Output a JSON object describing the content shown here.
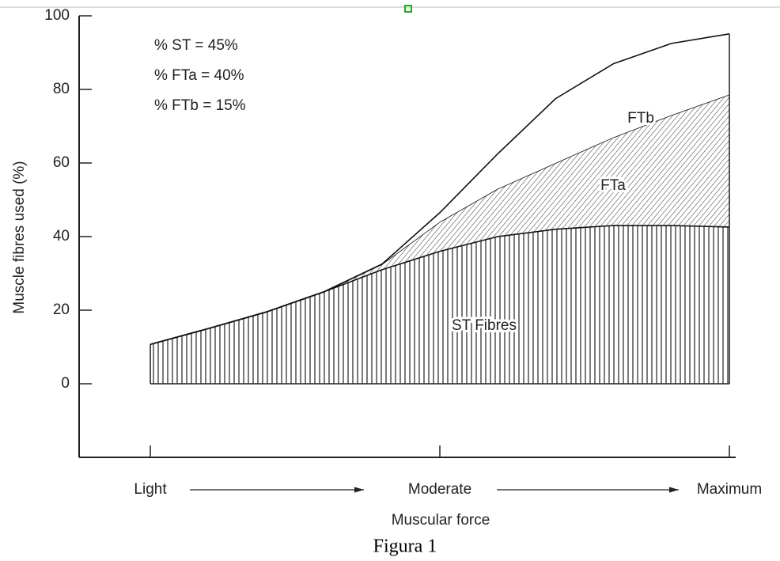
{
  "chart_data": {
    "type": "stacked_area",
    "caption": "Figura 1",
    "y_label": "Muscle fibres used (%)",
    "x_label": "Muscular force",
    "annotations": [
      "% ST = 45%",
      "% FTa = 40%",
      "% FTb = 15%"
    ],
    "x": [
      0,
      10,
      20,
      30,
      40,
      50,
      60,
      70,
      80,
      90,
      100
    ],
    "xlim": [
      -12.3,
      100
    ],
    "xticks": [
      {
        "value": 0,
        "label": "Light"
      },
      {
        "value": 50,
        "label": "Moderate"
      },
      {
        "value": 100,
        "label": "Maximum"
      }
    ],
    "ylim": [
      -20,
      100
    ],
    "yticks": [
      0,
      20,
      40,
      60,
      80,
      100
    ],
    "series": [
      {
        "name": "ST Fibres",
        "color": "#111111",
        "pattern": "vertical",
        "values": [
          10.7,
          15,
          19.5,
          25,
          31,
          36,
          40,
          42,
          43,
          43,
          42.6
        ]
      },
      {
        "name": "FTa",
        "color": "#111111",
        "pattern": "diagonal",
        "values": [
          0,
          0,
          0,
          0,
          1.5,
          8,
          13,
          18,
          24,
          30,
          36
        ]
      },
      {
        "name": "FTb",
        "color": "#111111",
        "pattern": "none",
        "values": [
          0,
          0,
          0,
          0,
          0,
          2.5,
          9.5,
          17.5,
          20,
          19.5,
          16.5
        ]
      }
    ]
  }
}
